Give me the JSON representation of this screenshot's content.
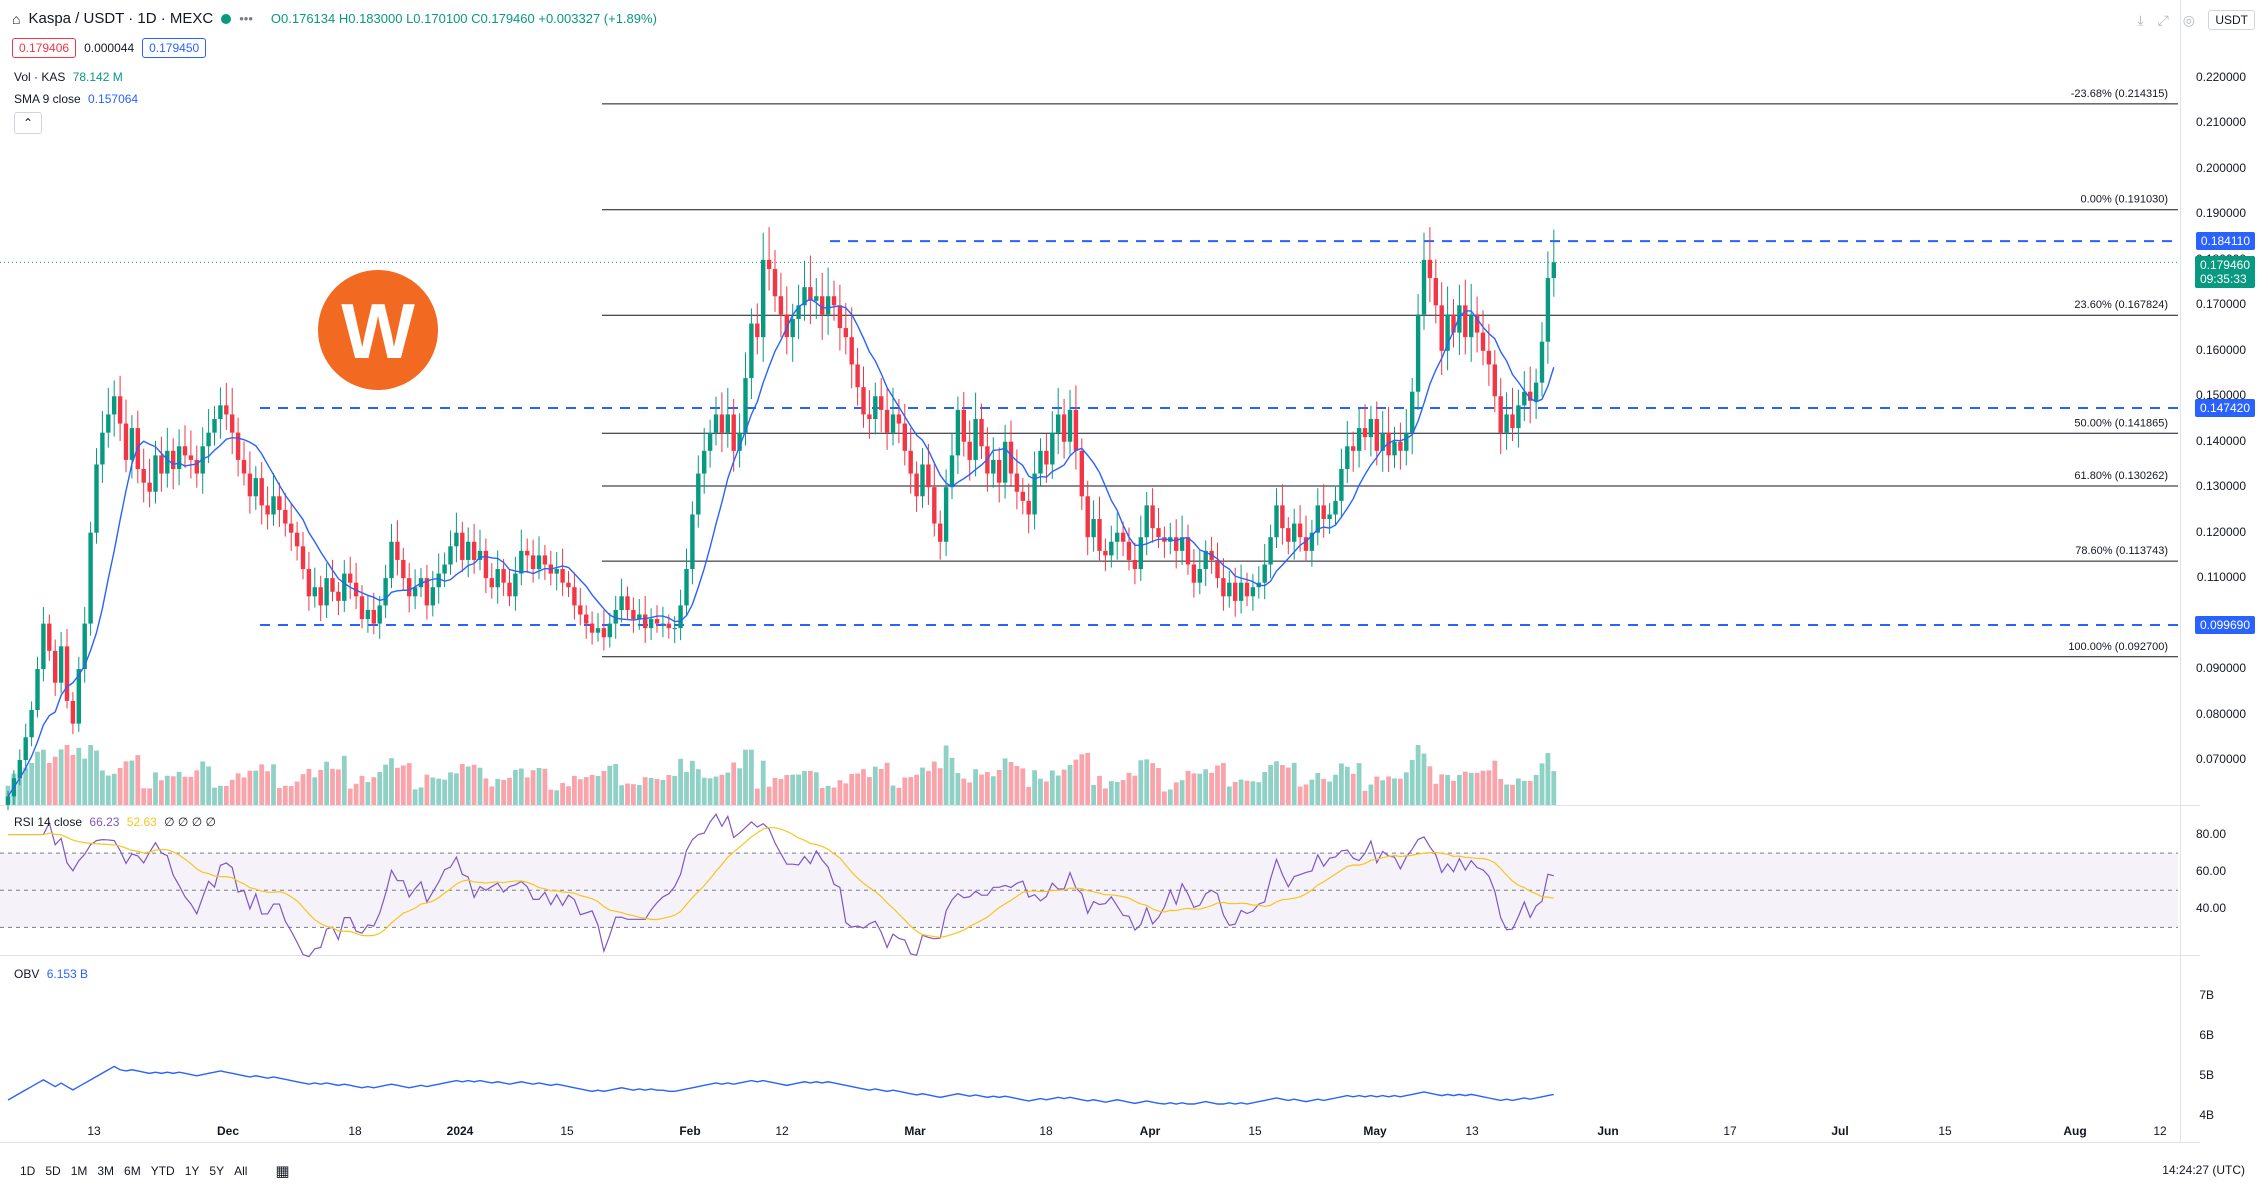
{
  "header": {
    "symbol": "Kaspa / USDT · 1D · MEXC",
    "ohlc": "O0.176134 H0.183000 L0.170100 C0.179460 +0.003327 (+1.89%)",
    "bid": "0.179406",
    "spread": "0.000044",
    "ask": "0.179450",
    "currency": "USDT"
  },
  "indicators": {
    "vol_label": "Vol · KAS",
    "vol_value": "78.142 M",
    "sma_label": "SMA 9 close",
    "sma_value": "0.157064",
    "rsi_label": "RSI 14 close",
    "rsi_value": "66.23",
    "rsi_ma": "52.63",
    "rsi_extra": "∅ ∅ ∅ ∅",
    "obv_label": "OBV",
    "obv_value": "6.153 B"
  },
  "price_axis": [
    "0.220000",
    "0.210000",
    "0.200000",
    "0.190000",
    "0.180000",
    "0.170000",
    "0.160000",
    "0.150000",
    "0.140000",
    "0.130000",
    "0.120000",
    "0.110000",
    "0.100000",
    "0.090000",
    "0.080000",
    "0.070000"
  ],
  "price_tags": {
    "resistance": "0.184110",
    "last": "0.179460",
    "countdown": "09:35:33",
    "mid": "0.147420",
    "support": "0.099690"
  },
  "fib_levels": [
    {
      "label": "-23.68% (0.214315)",
      "price": 0.214315
    },
    {
      "label": "0.00% (0.191030)",
      "price": 0.19103
    },
    {
      "label": "23.60% (0.167824)",
      "price": 0.167824
    },
    {
      "label": "50.00% (0.141865)",
      "price": 0.141865
    },
    {
      "label": "61.80% (0.130262)",
      "price": 0.130262
    },
    {
      "label": "78.60% (0.113743)",
      "price": 0.113743
    },
    {
      "label": "100.00% (0.092700)",
      "price": 0.0927
    }
  ],
  "hlines": [
    0.18411,
    0.14742,
    0.09969
  ],
  "rsi_axis": [
    "80.00",
    "60.00",
    "40.00"
  ],
  "obv_axis": [
    "7B",
    "6B",
    "5B",
    "4B"
  ],
  "time_axis": [
    "13",
    "Dec",
    "18",
    "2024",
    "15",
    "Feb",
    "12",
    "Mar",
    "18",
    "Apr",
    "15",
    "May",
    "13",
    "Jun",
    "17",
    "Jul",
    "15",
    "Aug",
    "12"
  ],
  "ranges": [
    "1D",
    "5D",
    "1M",
    "3M",
    "6M",
    "YTD",
    "1Y",
    "5Y",
    "All"
  ],
  "clock": "14:24:27 (UTC)",
  "colors": {
    "up": "#089981",
    "down": "#f23645",
    "sma": "#2962ff",
    "dash": "#2962ff",
    "logo": "#f26a21"
  },
  "chart_data": {
    "type": "candlestick",
    "closes": [
      0.062,
      0.066,
      0.07,
      0.075,
      0.081,
      0.09,
      0.1,
      0.094,
      0.087,
      0.095,
      0.083,
      0.078,
      0.09,
      0.1,
      0.12,
      0.135,
      0.142,
      0.146,
      0.15,
      0.144,
      0.136,
      0.143,
      0.134,
      0.131,
      0.129,
      0.137,
      0.133,
      0.138,
      0.134,
      0.139,
      0.137,
      0.136,
      0.133,
      0.139,
      0.142,
      0.145,
      0.148,
      0.146,
      0.142,
      0.136,
      0.133,
      0.128,
      0.132,
      0.126,
      0.124,
      0.128,
      0.125,
      0.122,
      0.12,
      0.117,
      0.112,
      0.106,
      0.108,
      0.104,
      0.11,
      0.107,
      0.105,
      0.111,
      0.109,
      0.106,
      0.101,
      0.103,
      0.1,
      0.104,
      0.11,
      0.118,
      0.114,
      0.11,
      0.106,
      0.108,
      0.11,
      0.104,
      0.108,
      0.111,
      0.113,
      0.117,
      0.12,
      0.114,
      0.118,
      0.114,
      0.116,
      0.11,
      0.108,
      0.112,
      0.109,
      0.106,
      0.111,
      0.116,
      0.115,
      0.112,
      0.115,
      0.113,
      0.111,
      0.112,
      0.109,
      0.108,
      0.104,
      0.102,
      0.1,
      0.098,
      0.099,
      0.097,
      0.1,
      0.103,
      0.106,
      0.103,
      0.101,
      0.102,
      0.099,
      0.101,
      0.1,
      0.1,
      0.099,
      0.099,
      0.104,
      0.112,
      0.124,
      0.133,
      0.138,
      0.142,
      0.146,
      0.142,
      0.146,
      0.138,
      0.142,
      0.154,
      0.166,
      0.163,
      0.18,
      0.178,
      0.172,
      0.168,
      0.163,
      0.167,
      0.17,
      0.174,
      0.171,
      0.172,
      0.168,
      0.172,
      0.17,
      0.165,
      0.163,
      0.157,
      0.152,
      0.146,
      0.145,
      0.15,
      0.147,
      0.142,
      0.146,
      0.144,
      0.138,
      0.133,
      0.128,
      0.135,
      0.13,
      0.122,
      0.118,
      0.13,
      0.137,
      0.147,
      0.14,
      0.136,
      0.145,
      0.139,
      0.133,
      0.136,
      0.131,
      0.14,
      0.133,
      0.129,
      0.127,
      0.124,
      0.133,
      0.138,
      0.135,
      0.142,
      0.146,
      0.14,
      0.147,
      0.138,
      0.128,
      0.119,
      0.123,
      0.116,
      0.115,
      0.118,
      0.12,
      0.118,
      0.114,
      0.112,
      0.119,
      0.126,
      0.121,
      0.119,
      0.118,
      0.119,
      0.116,
      0.119,
      0.113,
      0.109,
      0.112,
      0.116,
      0.114,
      0.11,
      0.106,
      0.109,
      0.105,
      0.109,
      0.106,
      0.108,
      0.109,
      0.113,
      0.119,
      0.126,
      0.121,
      0.118,
      0.122,
      0.119,
      0.116,
      0.12,
      0.126,
      0.123,
      0.124,
      0.127,
      0.134,
      0.139,
      0.138,
      0.143,
      0.141,
      0.145,
      0.138,
      0.142,
      0.137,
      0.14,
      0.138,
      0.142,
      0.151,
      0.168,
      0.18,
      0.176,
      0.17,
      0.16,
      0.168,
      0.164,
      0.17,
      0.163,
      0.168,
      0.164,
      0.16,
      0.157,
      0.15,
      0.142,
      0.146,
      0.143,
      0.148,
      0.151,
      0.149,
      0.153,
      0.162,
      0.176,
      0.17946
    ]
  }
}
